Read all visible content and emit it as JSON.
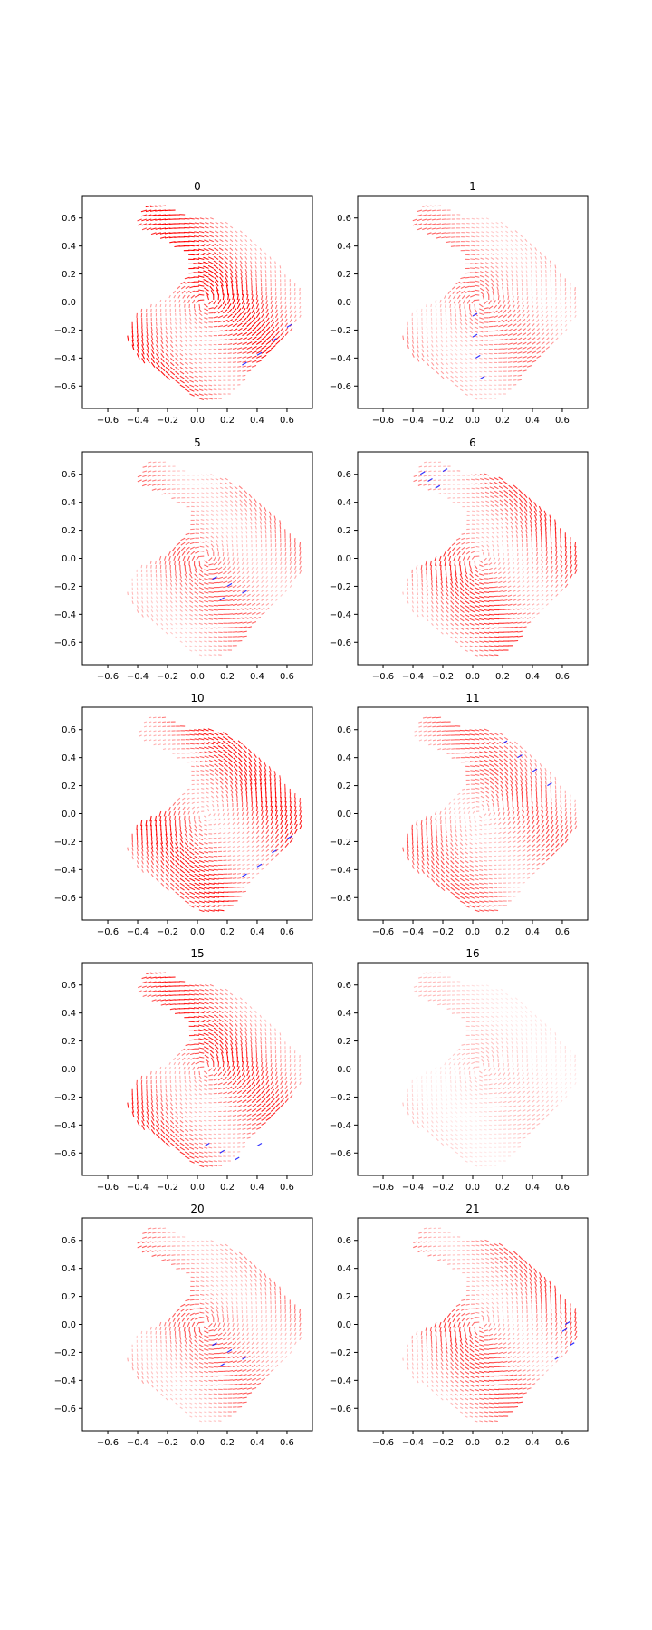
{
  "chart_data": [
    {
      "type": "scatter",
      "title": "0",
      "xticks": [
        "−0.6",
        "−0.4",
        "−0.2",
        "0.0",
        "0.2",
        "0.4",
        "0.6"
      ],
      "yticks": [
        "0.6",
        "0.4",
        "0.2",
        "0.0",
        "−0.2",
        "−0.4",
        "−0.6"
      ],
      "xlim": [
        -0.77,
        0.77
      ],
      "ylim": [
        -0.76,
        0.76
      ],
      "intensity": 0.9,
      "blue_edge": "lower-right",
      "grid": false
    },
    {
      "type": "scatter",
      "title": "1",
      "xticks": [
        "−0.6",
        "−0.4",
        "−0.2",
        "0.0",
        "0.2",
        "0.4",
        "0.6"
      ],
      "yticks": [
        "0.6",
        "0.4",
        "0.2",
        "0.0",
        "−0.2",
        "−0.4",
        "−0.6"
      ],
      "xlim": [
        -0.77,
        0.77
      ],
      "ylim": [
        -0.76,
        0.76
      ],
      "intensity": 0.55,
      "blue_edge": "center-seam",
      "grid": false
    },
    {
      "type": "scatter",
      "title": "5",
      "xticks": [
        "−0.6",
        "−0.4",
        "−0.2",
        "0.0",
        "0.2",
        "0.4",
        "0.6"
      ],
      "yticks": [
        "0.6",
        "0.4",
        "0.2",
        "0.0",
        "−0.2",
        "−0.4",
        "−0.6"
      ],
      "xlim": [
        -0.77,
        0.77
      ],
      "ylim": [
        -0.76,
        0.76
      ],
      "intensity": 0.6,
      "blue_edge": "center",
      "grid": false
    },
    {
      "type": "scatter",
      "title": "6",
      "xticks": [
        "−0.6",
        "−0.4",
        "−0.2",
        "0.0",
        "0.2",
        "0.4",
        "0.6"
      ],
      "yticks": [
        "0.6",
        "0.4",
        "0.2",
        "0.0",
        "−0.2",
        "−0.4",
        "−0.6"
      ],
      "xlim": [
        -0.77,
        0.77
      ],
      "ylim": [
        -0.76,
        0.76
      ],
      "intensity": 0.75,
      "blue_edge": "top-left",
      "grid": false
    },
    {
      "type": "scatter",
      "title": "10",
      "xticks": [
        "−0.6",
        "−0.4",
        "−0.2",
        "0.0",
        "0.2",
        "0.4",
        "0.6"
      ],
      "yticks": [
        "0.6",
        "0.4",
        "0.2",
        "0.0",
        "−0.2",
        "−0.4",
        "−0.6"
      ],
      "xlim": [
        -0.77,
        0.77
      ],
      "ylim": [
        -0.76,
        0.76
      ],
      "intensity": 0.85,
      "blue_edge": "lower-right",
      "grid": false
    },
    {
      "type": "scatter",
      "title": "11",
      "xticks": [
        "−0.6",
        "−0.4",
        "−0.2",
        "0.0",
        "0.2",
        "0.4",
        "0.6"
      ],
      "yticks": [
        "0.6",
        "0.4",
        "0.2",
        "0.0",
        "−0.2",
        "−0.4",
        "−0.6"
      ],
      "xlim": [
        -0.77,
        0.77
      ],
      "ylim": [
        -0.76,
        0.76
      ],
      "intensity": 0.65,
      "blue_edge": "upper-right",
      "grid": false
    },
    {
      "type": "scatter",
      "title": "15",
      "xticks": [
        "−0.6",
        "−0.4",
        "−0.2",
        "0.0",
        "0.2",
        "0.4",
        "0.6"
      ],
      "yticks": [
        "0.6",
        "0.4",
        "0.2",
        "0.0",
        "−0.2",
        "−0.4",
        "−0.6"
      ],
      "xlim": [
        -0.77,
        0.77
      ],
      "ylim": [
        -0.76,
        0.76
      ],
      "intensity": 0.8,
      "blue_edge": "bottom",
      "grid": false
    },
    {
      "type": "scatter",
      "title": "16",
      "xticks": [
        "−0.6",
        "−0.4",
        "−0.2",
        "0.0",
        "0.2",
        "0.4",
        "0.6"
      ],
      "yticks": [
        "0.6",
        "0.4",
        "0.2",
        "0.0",
        "−0.2",
        "−0.4",
        "−0.6"
      ],
      "xlim": [
        -0.77,
        0.77
      ],
      "ylim": [
        -0.76,
        0.76
      ],
      "intensity": 0.25,
      "blue_edge": "none",
      "grid": false
    },
    {
      "type": "scatter",
      "title": "20",
      "xticks": [
        "−0.6",
        "−0.4",
        "−0.2",
        "0.0",
        "0.2",
        "0.4",
        "0.6"
      ],
      "yticks": [
        "0.6",
        "0.4",
        "0.2",
        "0.0",
        "−0.2",
        "−0.4",
        "−0.6"
      ],
      "xlim": [
        -0.77,
        0.77
      ],
      "ylim": [
        -0.76,
        0.76
      ],
      "intensity": 0.6,
      "blue_edge": "center",
      "grid": false
    },
    {
      "type": "scatter",
      "title": "21",
      "xticks": [
        "−0.6",
        "−0.4",
        "−0.2",
        "0.0",
        "0.2",
        "0.4",
        "0.6"
      ],
      "yticks": [
        "0.6",
        "0.4",
        "0.2",
        "0.0",
        "−0.2",
        "−0.4",
        "−0.6"
      ],
      "xlim": [
        -0.77,
        0.77
      ],
      "ylim": [
        -0.76,
        0.76
      ],
      "intensity": 0.7,
      "blue_edge": "right",
      "grid": false
    }
  ],
  "colors": {
    "primary": "#ff0000",
    "secondary": "#0000ff",
    "axes": "#000000",
    "background": "#ffffff"
  }
}
